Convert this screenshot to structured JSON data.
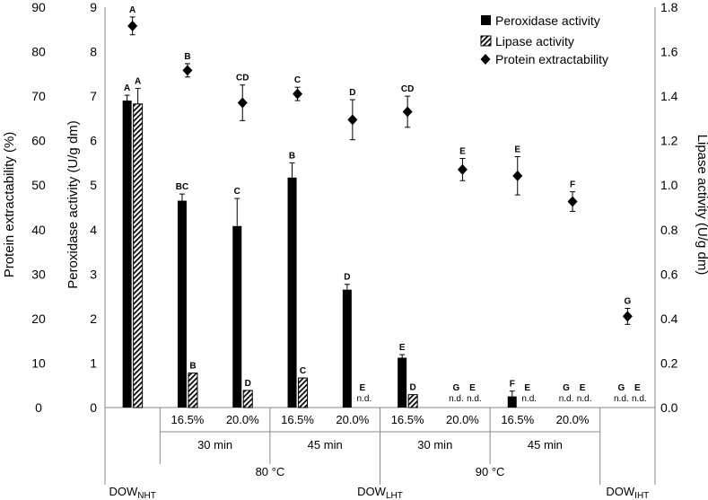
{
  "chart_data": {
    "type": "bar",
    "left_axis": {
      "title": "Protein extractability (%)",
      "range": [
        0,
        90
      ],
      "ticks": [
        "0",
        "10",
        "20",
        "30",
        "40",
        "50",
        "60",
        "70",
        "80",
        "90"
      ]
    },
    "inner_axis": {
      "title": "Peroxidase activity (U/g dm)",
      "range": [
        0,
        9
      ],
      "ticks": [
        "0",
        "1",
        "2",
        "3",
        "4",
        "5",
        "6",
        "7",
        "8",
        "9"
      ]
    },
    "right_axis": {
      "title": "Lipase activity (U/g dm)",
      "range": [
        0,
        1.8
      ],
      "ticks": [
        "0.0",
        "0.2",
        "0.4",
        "0.6",
        "0.8",
        "1.0",
        "1.2",
        "1.4",
        "1.6",
        "1.8"
      ]
    },
    "legend": {
      "position": "top-right",
      "items": [
        {
          "name": "Peroxidase activity",
          "style": "solid"
        },
        {
          "name": "Lipase activity",
          "style": "hatched"
        },
        {
          "name": "Protein extractability",
          "style": "diamond"
        }
      ]
    },
    "groups": [
      {
        "concentration": "",
        "peroxidase": 6.9,
        "peroxidase_err": 0.12,
        "peroxidase_letter": "A",
        "peroxidase_nd": "",
        "lipase": 1.365,
        "lipase_err": 0.07,
        "lipase_letter": "A",
        "lipase_nd": "",
        "protein": 85.8,
        "protein_err": 2.0,
        "protein_letter": "A"
      },
      {
        "concentration": "16.5%",
        "peroxidase": 4.65,
        "peroxidase_err": 0.15,
        "peroxidase_letter": "BC",
        "peroxidase_nd": "",
        "lipase": 0.155,
        "lipase_err": 0.0,
        "lipase_letter": "B",
        "lipase_nd": "",
        "protein": 75.8,
        "protein_err": 1.5,
        "protein_letter": "B"
      },
      {
        "concentration": "20.0%",
        "peroxidase": 4.08,
        "peroxidase_err": 0.62,
        "peroxidase_letter": "C",
        "peroxidase_nd": "",
        "lipase": 0.077,
        "lipase_err": 0.0,
        "lipase_letter": "D",
        "lipase_nd": "",
        "protein": 68.5,
        "protein_err": 4.0,
        "protein_letter": "CD"
      },
      {
        "concentration": "16.5%",
        "peroxidase": 5.17,
        "peroxidase_err": 0.33,
        "peroxidase_letter": "B",
        "peroxidase_nd": "",
        "lipase": 0.133,
        "lipase_err": 0.0,
        "lipase_letter": "C",
        "lipase_nd": "",
        "protein": 70.5,
        "protein_err": 1.5,
        "protein_letter": "C"
      },
      {
        "concentration": "20.0%",
        "peroxidase": 2.65,
        "peroxidase_err": 0.12,
        "peroxidase_letter": "D",
        "peroxidase_nd": "",
        "lipase": null,
        "lipase_err": 0,
        "lipase_letter": "E",
        "lipase_nd": "n.d.",
        "protein": 64.7,
        "protein_err": 4.5,
        "protein_letter": "D"
      },
      {
        "concentration": "16.5%",
        "peroxidase": 1.12,
        "peroxidase_err": 0.07,
        "peroxidase_letter": "E",
        "peroxidase_nd": "",
        "lipase": 0.058,
        "lipase_err": 0.0,
        "lipase_letter": "D",
        "lipase_nd": "",
        "protein": 66.5,
        "protein_err": 3.5,
        "protein_letter": "CD"
      },
      {
        "concentration": "20.0%",
        "peroxidase": null,
        "peroxidase_err": 0,
        "peroxidase_letter": "G",
        "peroxidase_nd": "n.d.",
        "lipase": null,
        "lipase_err": 0,
        "lipase_letter": "E",
        "lipase_nd": "n.d.",
        "protein": 53.5,
        "protein_err": 2.5,
        "protein_letter": "E"
      },
      {
        "concentration": "16.5%",
        "peroxidase": 0.25,
        "peroxidase_err": 0.12,
        "peroxidase_letter": "F",
        "peroxidase_nd": "",
        "lipase": null,
        "lipase_err": 0,
        "lipase_letter": "E",
        "lipase_nd": "n.d.",
        "protein": 52.1,
        "protein_err": 4.3,
        "protein_letter": "E"
      },
      {
        "concentration": "20.0%",
        "peroxidase": null,
        "peroxidase_err": 0,
        "peroxidase_letter": "G",
        "peroxidase_nd": "n.d.",
        "lipase": null,
        "lipase_err": 0,
        "lipase_letter": "E",
        "lipase_nd": "n.d.",
        "protein": 46.3,
        "protein_err": 2.2,
        "protein_letter": "F"
      },
      {
        "concentration": "",
        "peroxidase": null,
        "peroxidase_err": 0,
        "peroxidase_letter": "G",
        "peroxidase_nd": "n.d.",
        "lipase": null,
        "lipase_err": 0,
        "lipase_letter": "E",
        "lipase_nd": "n.d.",
        "protein": 20.5,
        "protein_err": 1.8,
        "protein_letter": "G"
      }
    ],
    "time_labels": [
      "30 min",
      "45 min",
      "30 min",
      "45 min"
    ],
    "temperature_labels": [
      "80 °C",
      "90 °C"
    ],
    "sample_labels": [
      {
        "base": "DOW",
        "sub": "NHT"
      },
      {
        "base": "DOW",
        "sub": "LHT"
      },
      {
        "base": "DOW",
        "sub": "IHT"
      }
    ]
  }
}
